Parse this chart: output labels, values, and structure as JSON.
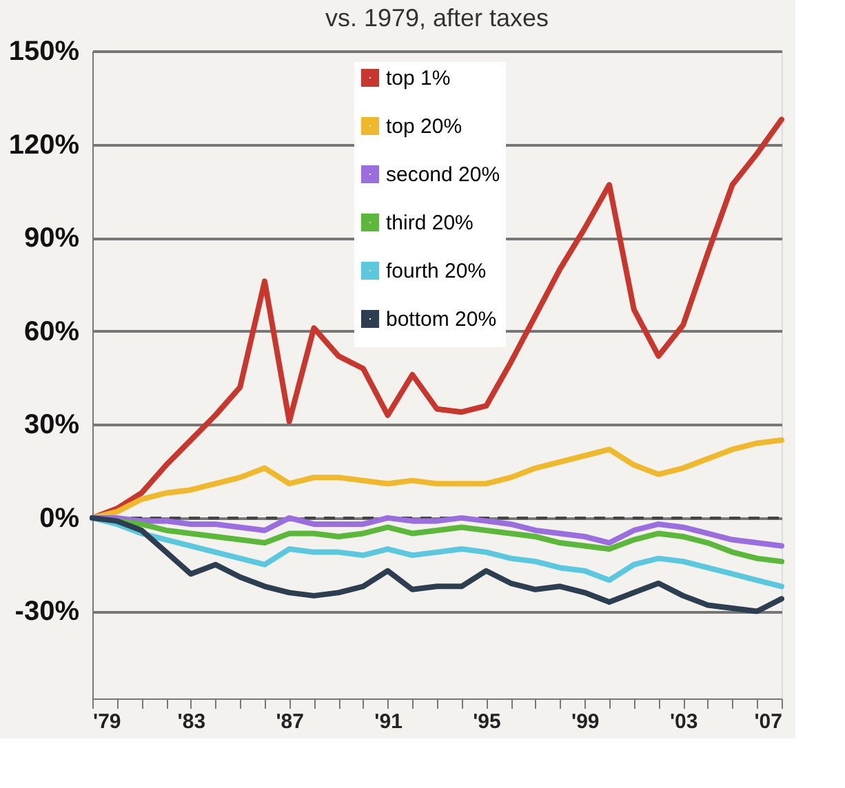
{
  "chart_data": {
    "type": "line",
    "title": "vs. 1979, after taxes",
    "x": [
      1979,
      1980,
      1981,
      1982,
      1983,
      1984,
      1985,
      1986,
      1987,
      1988,
      1989,
      1990,
      1991,
      1992,
      1993,
      1994,
      1995,
      1996,
      1997,
      1998,
      1999,
      2000,
      2001,
      2002,
      2003,
      2004,
      2005,
      2006,
      2007
    ],
    "series": [
      {
        "name": "top 1%",
        "color": "#c8372d",
        "values": [
          0,
          3,
          8,
          17,
          25,
          33,
          42,
          76,
          31,
          61,
          52,
          48,
          33,
          46,
          35,
          34,
          36,
          50,
          65,
          80,
          93,
          107,
          67,
          52,
          62,
          85,
          107,
          117,
          128
        ]
      },
      {
        "name": "top 20%",
        "color": "#f0b82d",
        "values": [
          0,
          2,
          6,
          8,
          9,
          11,
          13,
          16,
          11,
          13,
          13,
          12,
          11,
          12,
          11,
          11,
          11,
          13,
          16,
          18,
          20,
          22,
          17,
          14,
          16,
          19,
          22,
          24,
          25
        ]
      },
      {
        "name": "second 20%",
        "color": "#9b6ee0",
        "values": [
          0,
          0,
          -1,
          -1,
          -2,
          -2,
          -3,
          -4,
          0,
          -2,
          -2,
          -2,
          0,
          -1,
          -1,
          0,
          -1,
          -2,
          -4,
          -5,
          -6,
          -8,
          -4,
          -2,
          -3,
          -5,
          -7,
          -8,
          -9
        ]
      },
      {
        "name": "third 20%",
        "color": "#5bb83a",
        "values": [
          0,
          -1,
          -2,
          -4,
          -5,
          -6,
          -7,
          -8,
          -5,
          -5,
          -6,
          -5,
          -3,
          -5,
          -4,
          -3,
          -4,
          -5,
          -6,
          -8,
          -9,
          -10,
          -7,
          -5,
          -6,
          -8,
          -11,
          -13,
          -14
        ]
      },
      {
        "name": "fourth 20%",
        "color": "#5cc8e0",
        "values": [
          0,
          -2,
          -5,
          -7,
          -9,
          -11,
          -13,
          -15,
          -10,
          -11,
          -11,
          -12,
          -10,
          -12,
          -11,
          -10,
          -11,
          -13,
          -14,
          -16,
          -17,
          -20,
          -15,
          -13,
          -14,
          -16,
          -18,
          -20,
          -22
        ]
      },
      {
        "name": "bottom 20%",
        "color": "#2c3e50",
        "values": [
          0,
          -1,
          -4,
          -11,
          -18,
          -15,
          -19,
          -22,
          -24,
          -25,
          -24,
          -22,
          -17,
          -23,
          -22,
          -22,
          -17,
          -21,
          -23,
          -22,
          -24,
          -27,
          -24,
          -21,
          -25,
          -28,
          -29,
          -30,
          -26
        ]
      }
    ],
    "xlim": [
      1979,
      2007
    ],
    "xticks": [
      {
        "value": 1979,
        "label": "'79"
      },
      {
        "value": 1980,
        "label": null
      },
      {
        "value": 1981,
        "label": null
      },
      {
        "value": 1982,
        "label": null
      },
      {
        "value": 1983,
        "label": "'83"
      },
      {
        "value": 1984,
        "label": null
      },
      {
        "value": 1985,
        "label": null
      },
      {
        "value": 1986,
        "label": null
      },
      {
        "value": 1987,
        "label": "'87"
      },
      {
        "value": 1988,
        "label": null
      },
      {
        "value": 1989,
        "label": null
      },
      {
        "value": 1990,
        "label": null
      },
      {
        "value": 1991,
        "label": "'91"
      },
      {
        "value": 1992,
        "label": null
      },
      {
        "value": 1993,
        "label": null
      },
      {
        "value": 1994,
        "label": null
      },
      {
        "value": 1995,
        "label": "'95"
      },
      {
        "value": 1996,
        "label": null
      },
      {
        "value": 1997,
        "label": null
      },
      {
        "value": 1998,
        "label": null
      },
      {
        "value": 1999,
        "label": "'99"
      },
      {
        "value": 2000,
        "label": null
      },
      {
        "value": 2001,
        "label": null
      },
      {
        "value": 2002,
        "label": null
      },
      {
        "value": 2003,
        "label": "'03"
      },
      {
        "value": 2004,
        "label": null
      },
      {
        "value": 2005,
        "label": null
      },
      {
        "value": 2006,
        "label": null
      },
      {
        "value": 2007,
        "label": "'07"
      }
    ],
    "ylim": [
      -58,
      150
    ],
    "yticks": [
      {
        "value": -30,
        "label": "-30%"
      },
      {
        "value": 0,
        "label": "0%"
      },
      {
        "value": 30,
        "label": "30%"
      },
      {
        "value": 60,
        "label": "60%"
      },
      {
        "value": 90,
        "label": "90%"
      },
      {
        "value": 120,
        "label": "120%"
      },
      {
        "value": 150,
        "label": "150%"
      }
    ],
    "ref_lines": [
      {
        "axis": "y",
        "value": 0,
        "line_style": "dashed",
        "color": "#444444"
      }
    ],
    "grid": "y",
    "legend": "top",
    "marker": "none",
    "line_style": "solid"
  }
}
